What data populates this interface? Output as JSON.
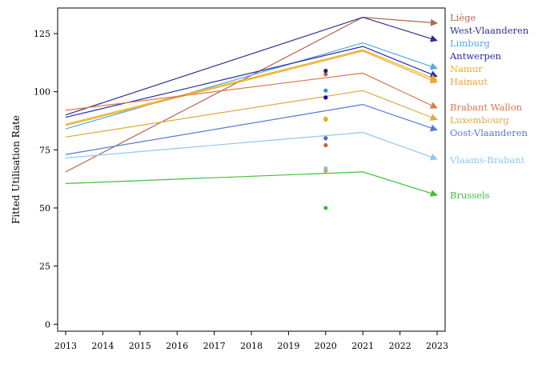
{
  "chart_data": {
    "type": "line",
    "ylabel": "Fitted Utilisation Rate",
    "xlim": [
      2013,
      2023
    ],
    "ylim": [
      -3,
      136
    ],
    "x_ticks": [
      2013,
      2014,
      2015,
      2016,
      2017,
      2018,
      2019,
      2020,
      2021,
      2022,
      2023
    ],
    "y_ticks": [
      0,
      25,
      50,
      75,
      100,
      125
    ],
    "grid": false,
    "legend_placement": "right, at series end",
    "series": [
      {
        "name": "Liège",
        "color": "#b5654f",
        "points": [
          [
            2013,
            65.5
          ],
          [
            2021,
            132
          ],
          [
            2023,
            129.5
          ]
        ],
        "marker_2020": 107.5,
        "marker_color": "#c86020"
      },
      {
        "name": "West-Vlaanderen",
        "color": "#303090",
        "points": [
          [
            2013,
            90
          ],
          [
            2021,
            132
          ],
          [
            2023,
            122
          ]
        ],
        "marker_2020": 109,
        "marker_color": "#1a1a80"
      },
      {
        "name": "Limburg",
        "color": "#4fa8e8",
        "points": [
          [
            2013,
            84
          ],
          [
            2021,
            121
          ],
          [
            2023,
            110
          ]
        ],
        "marker_2020": 100.5,
        "marker_color": "#2a90e0"
      },
      {
        "name": "Antwerpen",
        "color": "#2828b0",
        "points": [
          [
            2013,
            89
          ],
          [
            2021,
            119.5
          ],
          [
            2023,
            106.5
          ]
        ],
        "marker_2020": 97.5,
        "marker_color": "#0000c8"
      },
      {
        "name": "Namur",
        "color": "#e8b800",
        "points": [
          [
            2013,
            86
          ],
          [
            2021,
            118
          ],
          [
            2023,
            105
          ]
        ],
        "marker_2020": 88.5,
        "marker_color": "#f0c000"
      },
      {
        "name": "Hainaut",
        "color": "#f0a040",
        "points": [
          [
            2013,
            85.5
          ],
          [
            2021,
            117.5
          ],
          [
            2023,
            104
          ]
        ],
        "marker_2020": 88,
        "marker_color": "#f0a020"
      },
      {
        "name": "Brabant Wallon",
        "color": "#d87848",
        "points": [
          [
            2013,
            92
          ],
          [
            2021,
            108
          ],
          [
            2023,
            93
          ]
        ],
        "marker_2020": 77,
        "marker_color": "#d06030"
      },
      {
        "name": "Luxembourg",
        "color": "#e0a840",
        "points": [
          [
            2013,
            80.5
          ],
          [
            2021,
            100.5
          ],
          [
            2023,
            88
          ]
        ],
        "marker_2020": 66,
        "marker_color": "#d8a030"
      },
      {
        "name": "Oost-Vlaanderen",
        "color": "#5878d8",
        "points": [
          [
            2013,
            73
          ],
          [
            2021,
            94.5
          ],
          [
            2023,
            83.5
          ]
        ],
        "marker_2020": 80,
        "marker_color": "#4868d0"
      },
      {
        "name": "Vlaams-Brabant",
        "color": "#90c8f0",
        "points": [
          [
            2013,
            71.5
          ],
          [
            2021,
            82.5
          ],
          [
            2023,
            71
          ]
        ],
        "marker_2020": 67,
        "marker_color": "#80c0e8"
      },
      {
        "name": "Brussels",
        "color": "#40c040",
        "points": [
          [
            2013,
            60.5
          ],
          [
            2021,
            65.5
          ],
          [
            2023,
            55.5
          ]
        ],
        "marker_2020": 50,
        "marker_color": "#30c030"
      }
    ]
  }
}
